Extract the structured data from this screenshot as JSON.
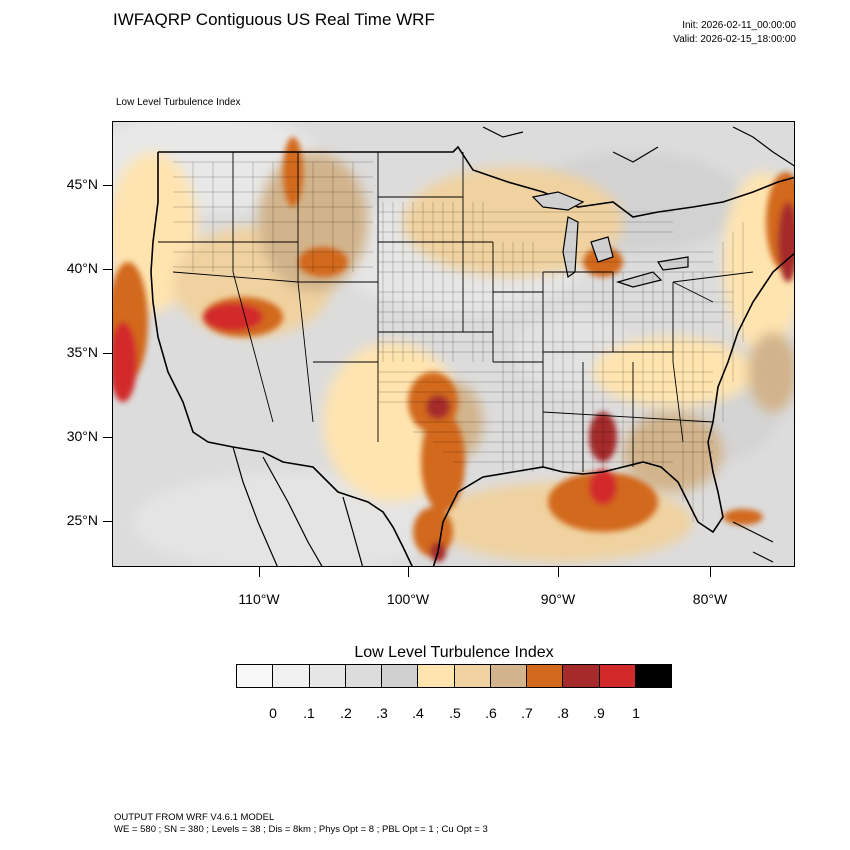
{
  "title": "IWFAQRP Contiguous US Real Time WRF",
  "init": "Init: 2026-02-11_00:00:00",
  "valid": "Valid: 2026-02-15_18:00:00",
  "plot_label": "Low Level Turbulence Index",
  "lat_labels": [
    "45°N",
    "40°N",
    "35°N",
    "30°N",
    "25°N"
  ],
  "lon_labels": [
    "110°W",
    "100°W",
    "90°W",
    "80°W"
  ],
  "colorbar": {
    "title": "Low Level Turbulence Index",
    "labels": [
      "0",
      ".1",
      ".2",
      ".3",
      ".4",
      ".5",
      ".6",
      ".7",
      ".8",
      ".9",
      "1"
    ],
    "colors": [
      "#f8f8f8",
      "#f0f0f0",
      "#e6e6e6",
      "#dcdcdc",
      "#d0d0d0",
      "#ffe4b0",
      "#f0d2a0",
      "#d2b48c",
      "#d2691e",
      "#a52a2a",
      "#d22a2a",
      "#000000"
    ]
  },
  "footer": {
    "line1": "OUTPUT FROM WRF V4.6.1 MODEL",
    "line2": "WE = 580 ; SN = 380 ; Levels = 38 ; Dis = 8km ; Phys Opt = 8 ; PBL Opt = 1 ; Cu Opt = 3"
  }
}
